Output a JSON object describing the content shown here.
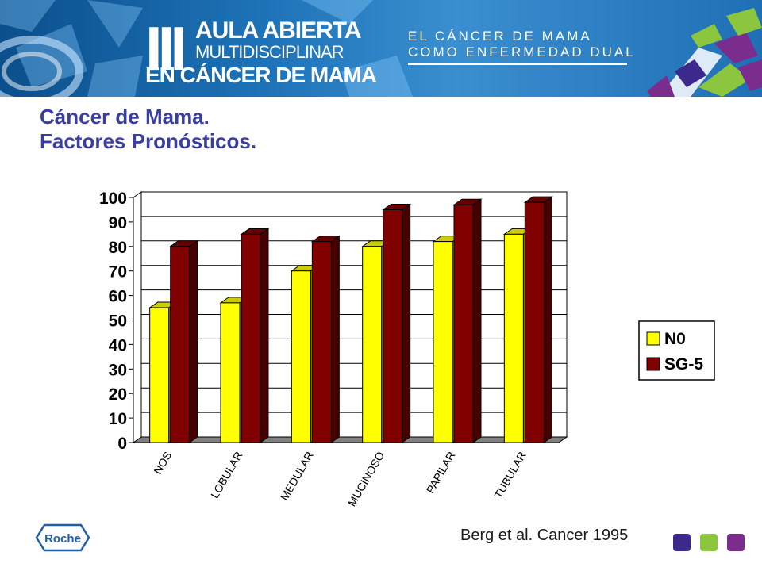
{
  "header": {
    "logo_numeral": "III",
    "logo_line1": "AULA ABIERTA",
    "logo_line2": "MULTIDISCIPLINAR",
    "logo_line3": "EN CÁNCER DE MAMA",
    "event_line1": "EL CÁNCER DE MAMA",
    "event_line2": "COMO ENFERMEDAD DUAL"
  },
  "slide": {
    "title_line1": "Cáncer de Mama.",
    "title_line2": "Factores Pronósticos.",
    "citation": "Berg et al. Cancer 1995"
  },
  "footer": {
    "brand": "Roche",
    "dot_colors": [
      "#3b2a8c",
      "#8cc63f",
      "#7b2d8e"
    ]
  },
  "chart_data": {
    "type": "bar",
    "categories": [
      "NOS",
      "LOBULAR",
      "MEDULAR",
      "MUCINOSO",
      "PAPILAR",
      "TUBULAR"
    ],
    "series": [
      {
        "name": "N0",
        "color": "#ffff00",
        "values": [
          55,
          57,
          70,
          80,
          82,
          85
        ]
      },
      {
        "name": "SG-5",
        "color": "#800000",
        "values": [
          80,
          85,
          82,
          95,
          97,
          98
        ]
      }
    ],
    "yticks": [
      0,
      10,
      20,
      30,
      40,
      50,
      60,
      70,
      80,
      90,
      100
    ],
    "ylim": [
      0,
      100
    ],
    "grid": true,
    "legend": "right"
  }
}
